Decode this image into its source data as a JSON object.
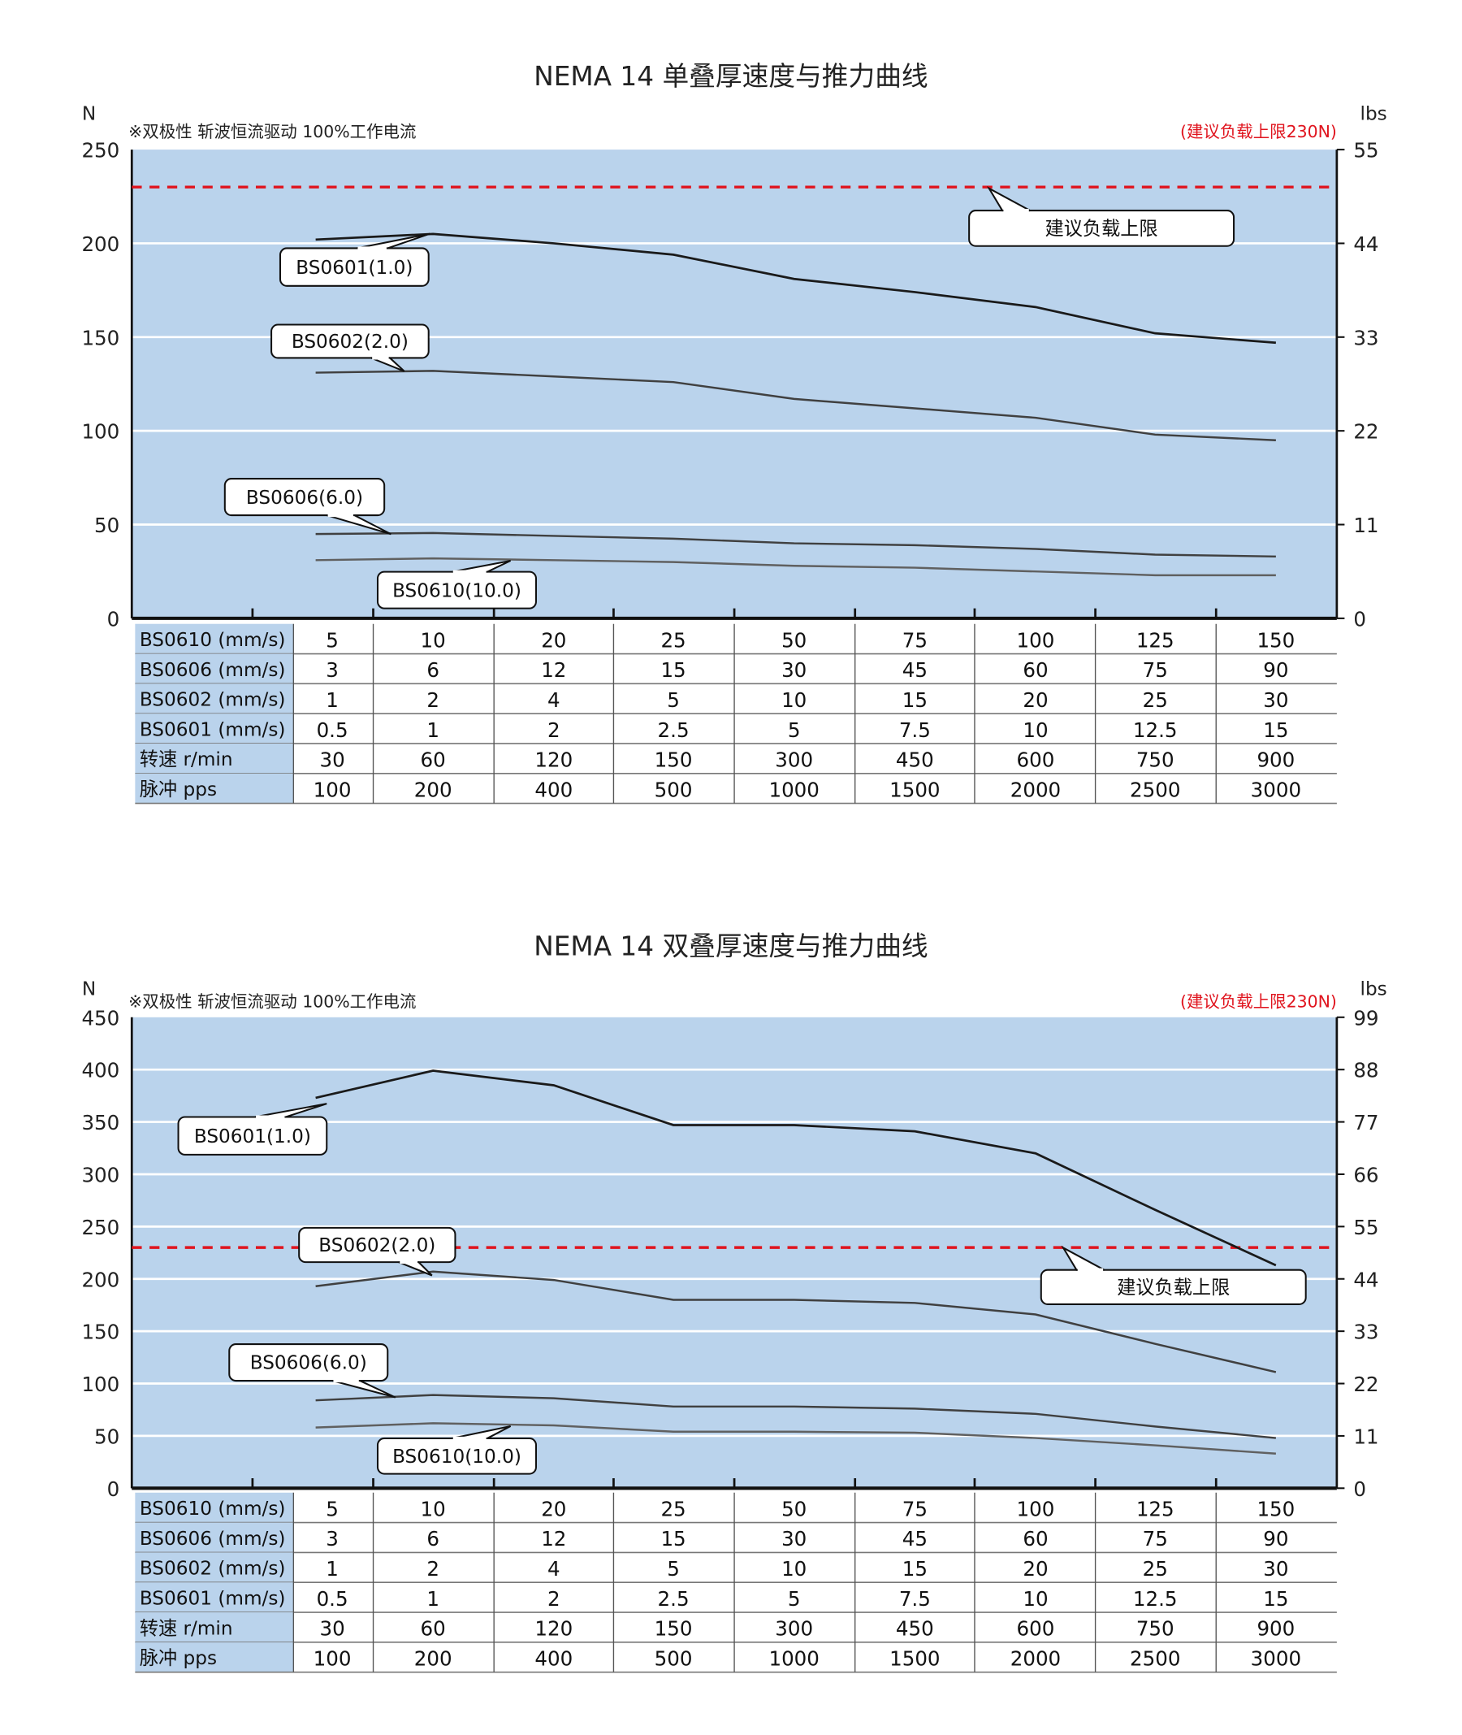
{
  "colors": {
    "plot_bg": "#bad3ec",
    "grid": "#ffffff",
    "limit": "#e0141e",
    "curve_dark": "#1a1a1a",
    "curve_mid": "#404040",
    "curve_light": "#606060",
    "label_col": "#bad3ec",
    "note_red": "#e0141e"
  },
  "chart_data": [
    {
      "type": "line",
      "title": "NEMA 14 单叠厚速度与推力曲线",
      "ylabel": "N",
      "ylabel_right": "lbs",
      "note": "※双极性 斩波恒流驱动 100%工作电流",
      "limit_note": "(建议负载上限230N)",
      "ylim": [
        0,
        250
      ],
      "yticks": [
        0,
        50,
        100,
        150,
        200,
        250
      ],
      "ylim_right": [
        0,
        55
      ],
      "yticks_right": [
        0,
        11,
        22,
        33,
        44,
        55
      ],
      "limit": {
        "value": 230,
        "label": "建议负载上限"
      },
      "x_index": [
        0,
        1,
        2,
        3,
        4,
        5,
        6,
        7,
        8
      ],
      "series": [
        {
          "name": "BS0601(1.0)",
          "values": [
            202,
            205,
            200,
            194,
            181,
            174,
            166,
            152,
            147
          ]
        },
        {
          "name": "BS0602(2.0)",
          "values": [
            131,
            132,
            129,
            126,
            117,
            112,
            107,
            98,
            95
          ]
        },
        {
          "name": "BS0606(6.0)",
          "values": [
            45,
            45.5,
            44,
            42.5,
            40,
            39,
            37,
            34,
            33
          ]
        },
        {
          "name": "BS0610(10.0)",
          "values": [
            31,
            32,
            31,
            30,
            28,
            27,
            25,
            23,
            23
          ]
        }
      ],
      "table": [
        {
          "label": "BS0610 (mm/s)",
          "values": [
            "5",
            "10",
            "20",
            "25",
            "50",
            "75",
            "100",
            "125",
            "150"
          ]
        },
        {
          "label": "BS0606 (mm/s)",
          "values": [
            "3",
            "6",
            "12",
            "15",
            "30",
            "45",
            "60",
            "75",
            "90"
          ]
        },
        {
          "label": "BS0602 (mm/s)",
          "values": [
            "1",
            "2",
            "4",
            "5",
            "10",
            "15",
            "20",
            "25",
            "30"
          ]
        },
        {
          "label": "BS0601 (mm/s)",
          "values": [
            "0.5",
            "1",
            "2",
            "2.5",
            "5",
            "7.5",
            "10",
            "12.5",
            "15"
          ]
        },
        {
          "label": "转速 r/min",
          "values": [
            "30",
            "60",
            "120",
            "150",
            "300",
            "450",
            "600",
            "750",
            "900"
          ]
        },
        {
          "label": "脉冲 pps",
          "values": [
            "100",
            "200",
            "400",
            "500",
            "1000",
            "1500",
            "2000",
            "2500",
            "3000"
          ]
        }
      ]
    },
    {
      "type": "line",
      "title": "NEMA 14 双叠厚速度与推力曲线",
      "ylabel": "N",
      "ylabel_right": "lbs",
      "note": "※双极性 斩波恒流驱动 100%工作电流",
      "limit_note": "(建议负载上限230N)",
      "ylim": [
        0,
        450
      ],
      "yticks": [
        0,
        50,
        100,
        150,
        200,
        250,
        300,
        350,
        400,
        450
      ],
      "ylim_right": [
        0,
        99
      ],
      "yticks_right": [
        0,
        11,
        22,
        33,
        44,
        55,
        66,
        77,
        88,
        99
      ],
      "limit": {
        "value": 230,
        "label": "建议负载上限"
      },
      "x_index": [
        0,
        1,
        2,
        3,
        4,
        5,
        6,
        7,
        8
      ],
      "series": [
        {
          "name": "BS0601(1.0)",
          "values": [
            373,
            399,
            385,
            347,
            347,
            341,
            320,
            266,
            213
          ]
        },
        {
          "name": "BS0602(2.0)",
          "values": [
            193,
            207,
            199,
            180,
            180,
            177,
            166,
            138,
            111
          ]
        },
        {
          "name": "BS0606(6.0)",
          "values": [
            84,
            89,
            86,
            78,
            78,
            76,
            71,
            59,
            48
          ]
        },
        {
          "name": "BS0610(10.0)",
          "values": [
            58,
            62,
            60,
            54,
            54,
            53,
            48,
            41,
            33
          ]
        }
      ],
      "table": [
        {
          "label": "BS0610 (mm/s)",
          "values": [
            "5",
            "10",
            "20",
            "25",
            "50",
            "75",
            "100",
            "125",
            "150"
          ]
        },
        {
          "label": "BS0606 (mm/s)",
          "values": [
            "3",
            "6",
            "12",
            "15",
            "30",
            "45",
            "60",
            "75",
            "90"
          ]
        },
        {
          "label": "BS0602 (mm/s)",
          "values": [
            "1",
            "2",
            "4",
            "5",
            "10",
            "15",
            "20",
            "25",
            "30"
          ]
        },
        {
          "label": "BS0601 (mm/s)",
          "values": [
            "0.5",
            "1",
            "2",
            "2.5",
            "5",
            "7.5",
            "10",
            "12.5",
            "15"
          ]
        },
        {
          "label": "转速 r/min",
          "values": [
            "30",
            "60",
            "120",
            "150",
            "300",
            "450",
            "600",
            "750",
            "900"
          ]
        },
        {
          "label": "脉冲 pps",
          "values": [
            "100",
            "200",
            "400",
            "500",
            "1000",
            "1500",
            "2000",
            "2500",
            "3000"
          ]
        }
      ]
    }
  ]
}
